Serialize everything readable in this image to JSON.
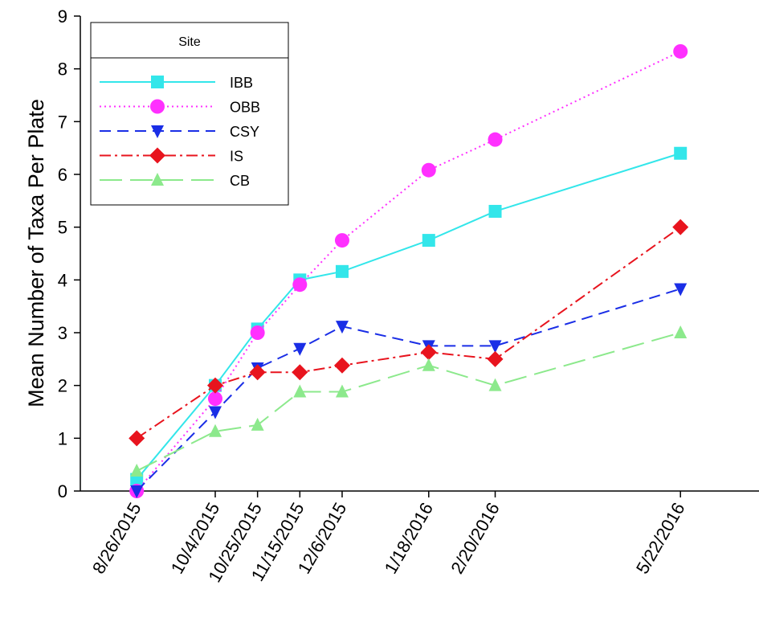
{
  "chart_data": {
    "type": "line",
    "ylabel": "Mean Number of Taxa Per Plate",
    "ylim": [
      0,
      9
    ],
    "yticks": [
      0,
      1,
      2,
      3,
      4,
      5,
      6,
      7,
      8,
      9
    ],
    "x_dates": [
      "2015-08-26",
      "2015-10-04",
      "2015-10-25",
      "2015-11-15",
      "2015-12-06",
      "2016-01-18",
      "2016-02-20",
      "2016-05-22"
    ],
    "xtick_labels": [
      "8/26/2015",
      "10/4/2015",
      "10/25/2015",
      "11/15/2015",
      "12/6/2015",
      "1/18/2016",
      "2/20/2016",
      "5/22/2016"
    ],
    "xlim": [
      "2015-07-29",
      "2016-06-30"
    ],
    "grid": false,
    "legend": {
      "title": "Site",
      "position": "top-left"
    },
    "series": [
      {
        "name": "IBB",
        "color": "#33e6ea",
        "marker": "square",
        "line_style": "solid",
        "values": [
          0.22,
          2.0,
          3.07,
          4.0,
          4.16,
          4.75,
          5.3,
          6.4
        ]
      },
      {
        "name": "OBB",
        "color": "#ff30ff",
        "marker": "circle",
        "line_style": "dotted",
        "values": [
          0.0,
          1.75,
          3.0,
          3.91,
          4.75,
          6.08,
          6.66,
          8.33
        ]
      },
      {
        "name": "CSY",
        "color": "#1a2ee6",
        "marker": "triangle-down",
        "line_style": "dashed",
        "values": [
          0.0,
          1.5,
          2.33,
          2.7,
          3.12,
          2.75,
          2.75,
          3.83
        ]
      },
      {
        "name": "IS",
        "color": "#e8141e",
        "marker": "diamond",
        "line_style": "dash-dot",
        "values": [
          1.0,
          2.0,
          2.25,
          2.25,
          2.38,
          2.63,
          2.5,
          5.0
        ]
      },
      {
        "name": "CB",
        "color": "#8ce98c",
        "marker": "triangle-up",
        "line_style": "long-dash",
        "values": [
          0.38,
          1.13,
          1.25,
          1.88,
          1.88,
          2.38,
          2.0,
          3.0
        ]
      }
    ]
  }
}
